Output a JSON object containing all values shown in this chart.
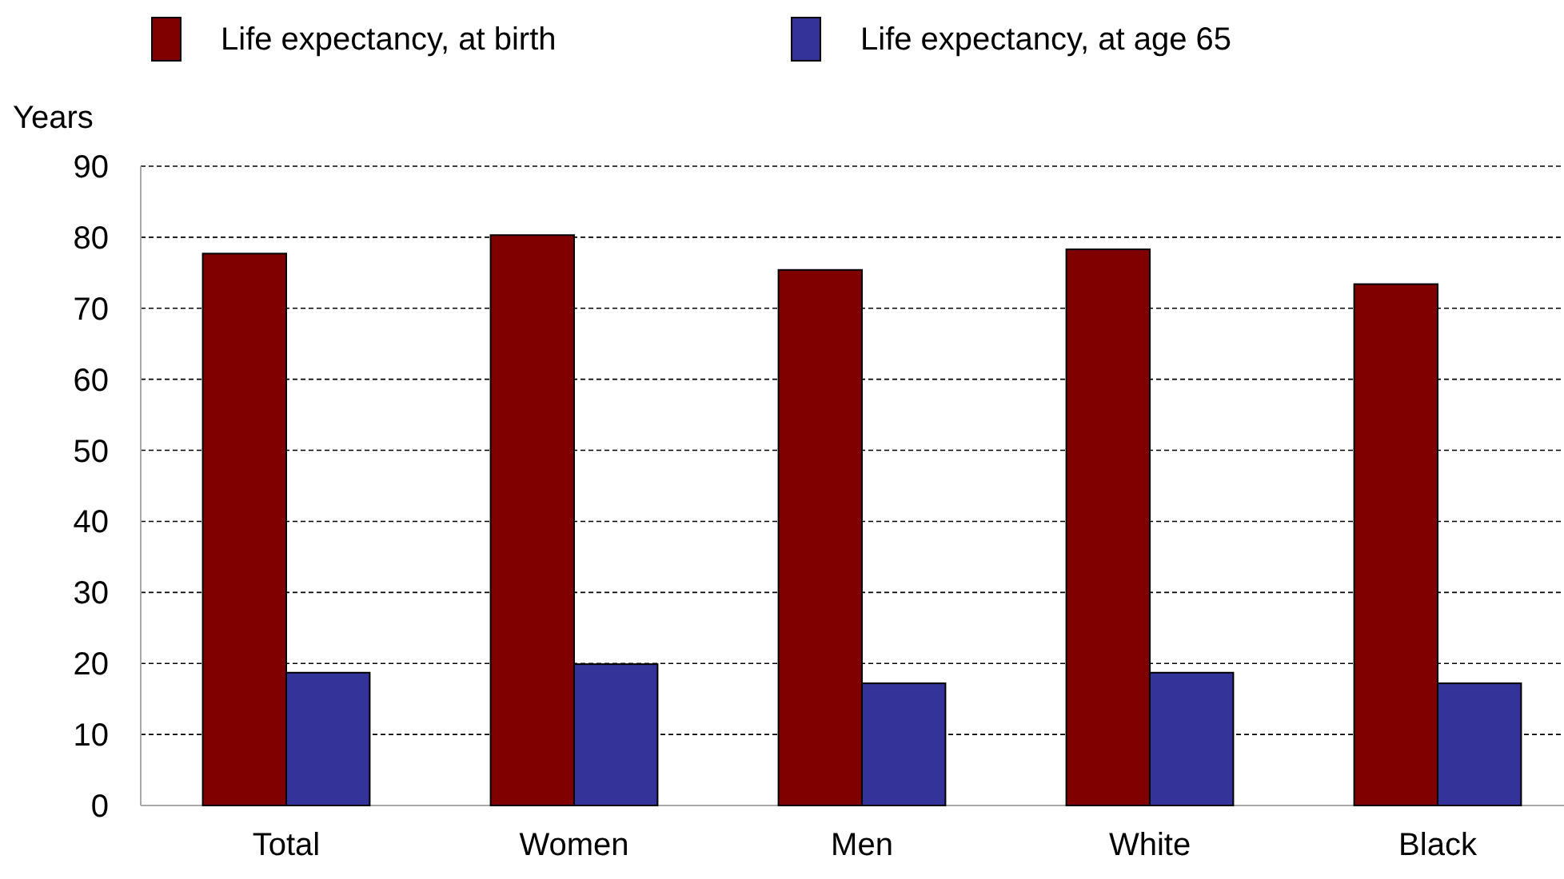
{
  "chart_data": {
    "type": "bar",
    "ylabel": "Years",
    "categories": [
      "Total",
      "Women",
      "Men",
      "White",
      "Black"
    ],
    "series": [
      {
        "name": "Life expectancy, at birth",
        "color": "#800000",
        "values": [
          77.7,
          80.3,
          75.4,
          78.3,
          73.4
        ]
      },
      {
        "name": "Life expectancy, at age 65",
        "color": "#333399",
        "values": [
          18.7,
          19.9,
          17.2,
          18.7,
          17.2
        ]
      }
    ],
    "ylim": [
      0,
      90
    ],
    "yticks": [
      0,
      10,
      20,
      30,
      40,
      50,
      60,
      70,
      80,
      90
    ],
    "grid": "y",
    "legend": "top"
  }
}
